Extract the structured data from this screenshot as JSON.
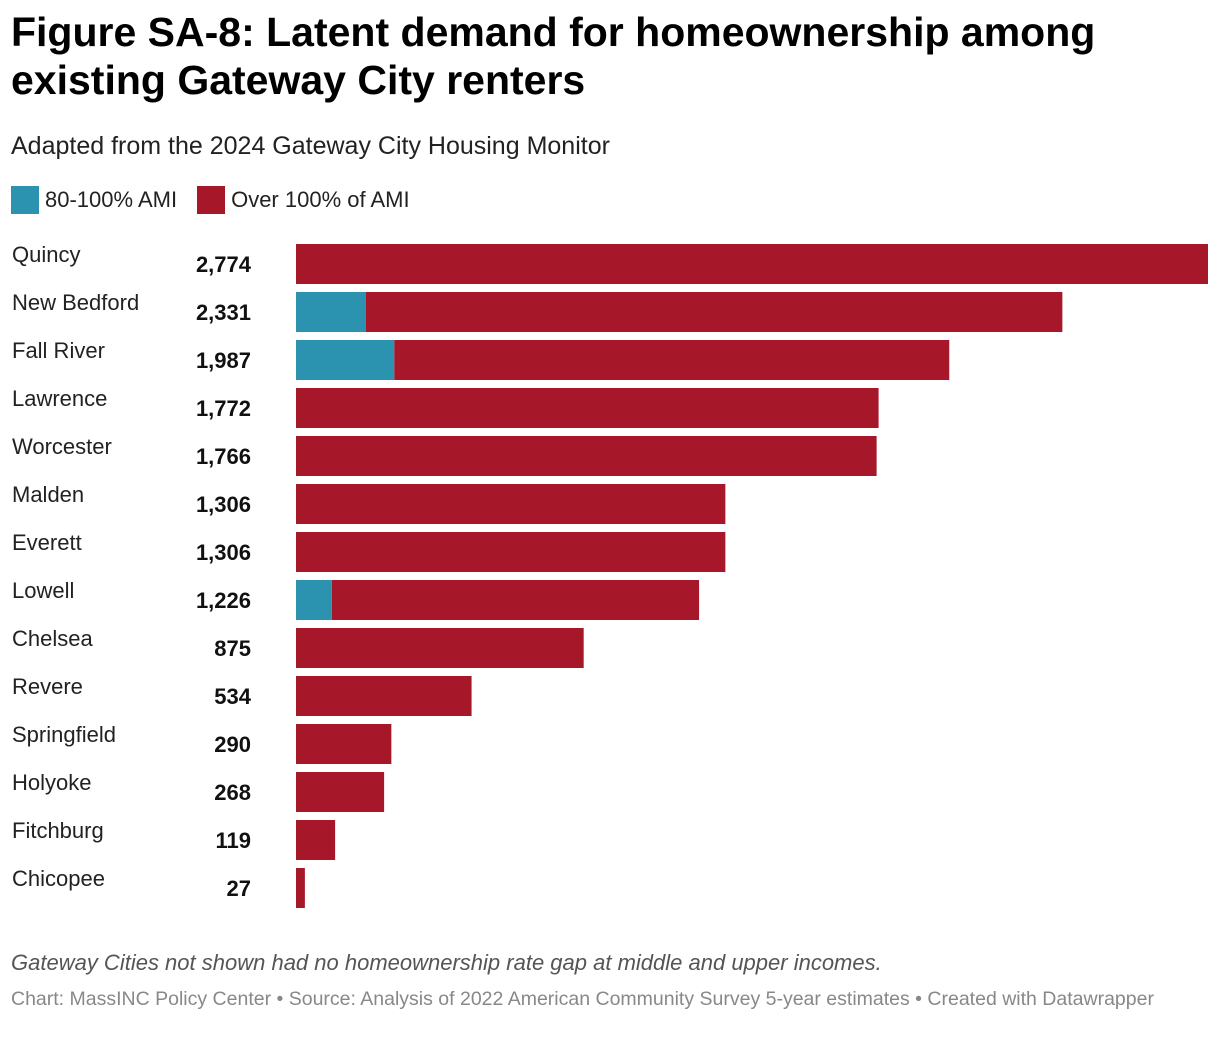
{
  "chart_data": {
    "type": "bar",
    "orientation": "horizontal",
    "stacked": true,
    "title": "Figure SA-8: Latent demand for homeownership among existing Gateway City renters",
    "subtitle": "Adapted from the 2024 Gateway City Housing Monitor",
    "categories": [
      "Quincy",
      "New Bedford",
      "Fall River",
      "Lawrence",
      "Worcester",
      "Malden",
      "Everett",
      "Lowell",
      "Chelsea",
      "Revere",
      "Springfield",
      "Holyoke",
      "Fitchburg",
      "Chicopee"
    ],
    "totals": [
      2774,
      2331,
      1987,
      1772,
      1766,
      1306,
      1306,
      1226,
      875,
      534,
      290,
      268,
      119,
      27
    ],
    "total_labels": [
      "2,774",
      "2,331",
      "1,987",
      "1,772",
      "1,766",
      "1,306",
      "1,306",
      "1,226",
      "875",
      "534",
      "290",
      "268",
      "119",
      "27"
    ],
    "series": [
      {
        "name": "80-100% AMI",
        "color": "#2b93b0",
        "values": [
          0,
          212,
          299,
          0,
          0,
          0,
          0,
          109,
          0,
          0,
          0,
          0,
          0,
          0
        ]
      },
      {
        "name": "Over 100% of AMI",
        "color": "#a51729",
        "values": [
          2774,
          2119,
          1688,
          1772,
          1766,
          1306,
          1306,
          1117,
          875,
          534,
          290,
          268,
          119,
          27
        ]
      }
    ],
    "xlim": [
      0,
      2774
    ],
    "legend_position": "top-left"
  },
  "notes": "Gateway Cities not shown had no homeownership rate gap at middle and upper incomes.",
  "credit": "Chart: MassINC Policy Center • Source: Analysis of 2022 American Community Survey 5-year estimates • Created with Datawrapper"
}
